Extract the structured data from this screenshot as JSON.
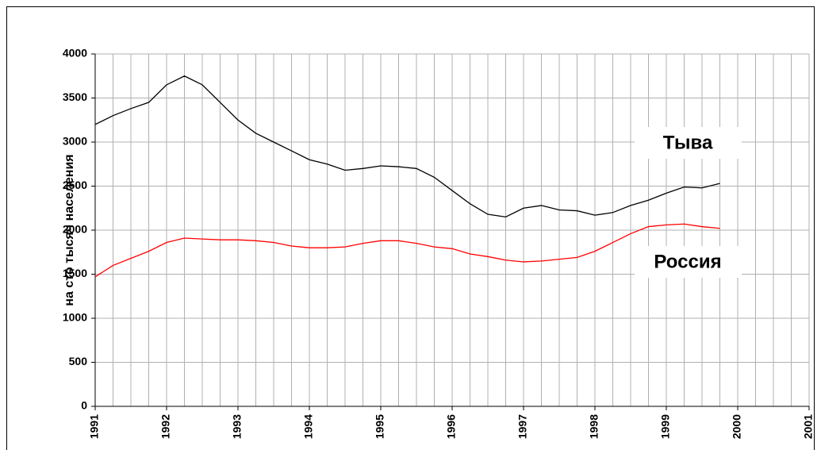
{
  "chart_data": {
    "type": "line",
    "y_label": "на сто тысяч населения",
    "x": [
      1991,
      1991.25,
      1991.5,
      1991.75,
      1992,
      1992.25,
      1992.5,
      1992.75,
      1993,
      1993.25,
      1993.5,
      1993.75,
      1994,
      1994.25,
      1994.5,
      1994.75,
      1995,
      1995.25,
      1995.5,
      1995.75,
      1996,
      1996.25,
      1996.5,
      1996.75,
      1997,
      1997.25,
      1997.5,
      1997.75,
      1998,
      1998.25,
      1998.5,
      1998.75,
      1999,
      1999.25,
      1999.5,
      1999.75
    ],
    "series": [
      {
        "name": "Тыва",
        "color": "#000000",
        "values": [
          3200,
          3300,
          3380,
          3450,
          3650,
          3750,
          3650,
          3450,
          3250,
          3100,
          3000,
          2900,
          2800,
          2750,
          2680,
          2700,
          2730,
          2720,
          2700,
          2600,
          2450,
          2300,
          2180,
          2150,
          2250,
          2280,
          2230,
          2220,
          2170,
          2200,
          2280,
          2340,
          2420,
          2490,
          2480,
          2530
        ]
      },
      {
        "name": "Россия",
        "color": "#ff0000",
        "values": [
          1470,
          1600,
          1680,
          1760,
          1860,
          1910,
          1900,
          1890,
          1890,
          1880,
          1860,
          1820,
          1800,
          1800,
          1810,
          1850,
          1880,
          1880,
          1850,
          1810,
          1790,
          1730,
          1700,
          1660,
          1640,
          1650,
          1670,
          1690,
          1760,
          1860,
          1960,
          2040,
          2060,
          2070,
          2040,
          2020
        ]
      }
    ],
    "xlim": [
      1991,
      2001
    ],
    "xticks": [
      1991,
      1992,
      1993,
      1994,
      1995,
      1996,
      1997,
      1998,
      1999,
      2000,
      2001
    ],
    "ylim": [
      0,
      4000
    ],
    "yticks": [
      0,
      500,
      1000,
      1500,
      2000,
      2500,
      3000,
      3500,
      4000
    ],
    "grid": true
  }
}
